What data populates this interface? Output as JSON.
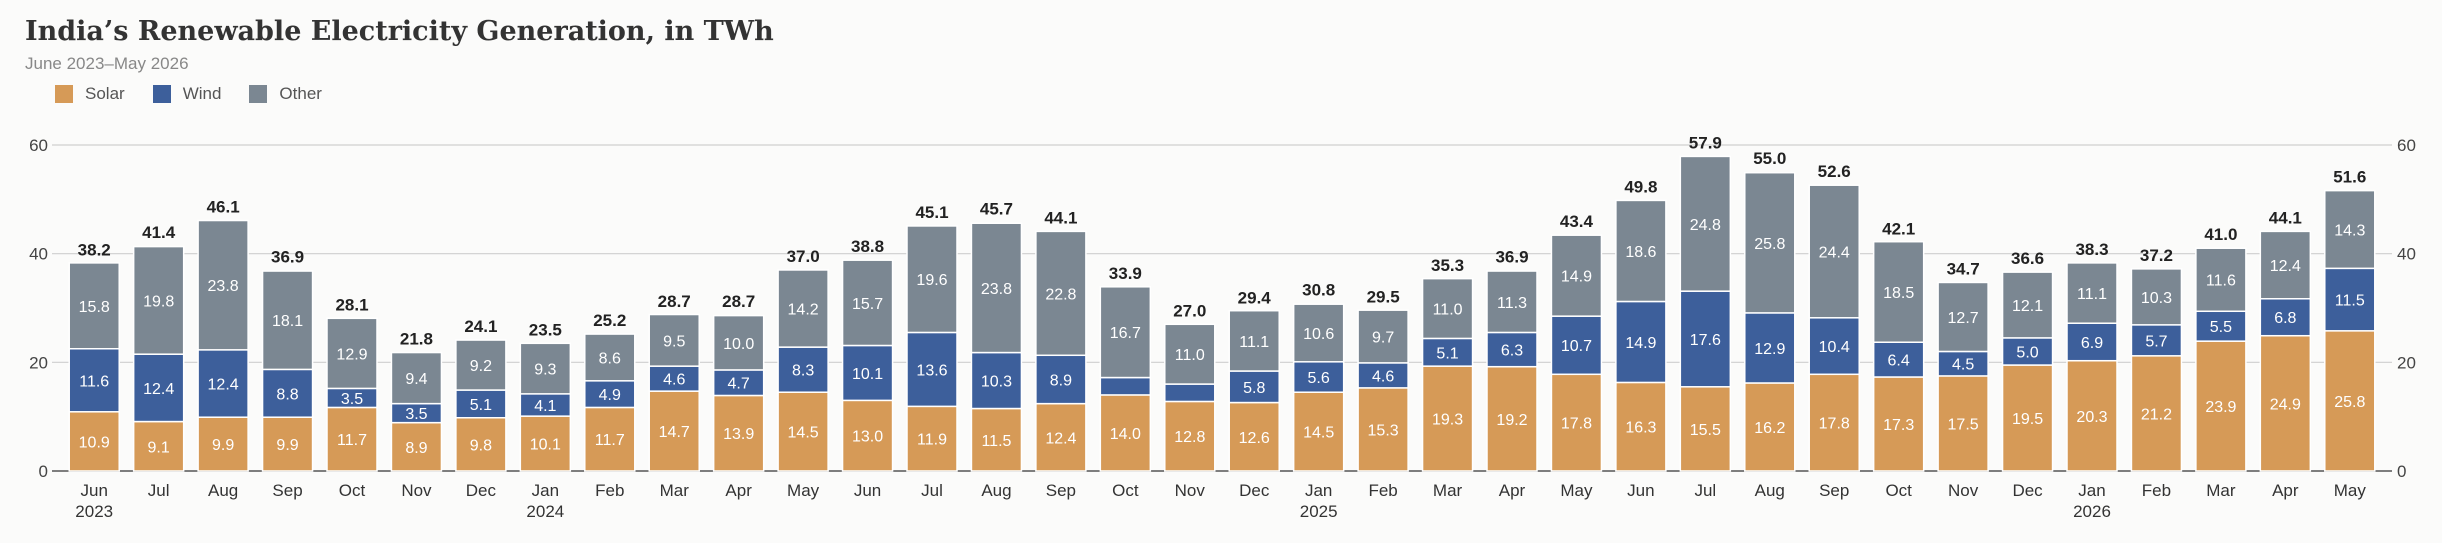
{
  "chart_data": {
    "type": "bar",
    "stacked": true,
    "title": "India’s Renewable Electricity Generation, in TWh",
    "subtitle": "June 2023–May 2026",
    "ylim": [
      0,
      60
    ],
    "yticks": [
      0,
      20,
      40,
      60
    ],
    "grid": true,
    "legend_position": "top-left",
    "categories": [
      "Jun",
      "Jul",
      "Aug",
      "Sep",
      "Oct",
      "Nov",
      "Dec",
      "Jan",
      "Feb",
      "Mar",
      "Apr",
      "May",
      "Jun",
      "Jul",
      "Aug",
      "Sep",
      "Oct",
      "Nov",
      "Dec",
      "Jan",
      "Feb",
      "Mar",
      "Apr",
      "May",
      "Jun",
      "Jul",
      "Aug",
      "Sep",
      "Oct",
      "Nov",
      "Dec",
      "Jan",
      "Feb",
      "Mar",
      "Apr",
      "May"
    ],
    "year_labels": [
      "2023",
      "",
      "",
      "",
      "",
      "",
      "",
      "2024",
      "",
      "",
      "",
      "",
      "",
      "",
      "",
      "",
      "",
      "",
      "",
      "2025",
      "",
      "",
      "",
      "",
      "",
      "",
      "",
      "",
      "",
      "",
      "",
      "2026",
      "",
      "",
      "",
      ""
    ],
    "series": [
      {
        "name": "Solar",
        "color": "#d69a57",
        "values": [
          10.9,
          9.1,
          9.9,
          9.9,
          11.7,
          8.9,
          9.8,
          10.1,
          11.7,
          14.7,
          13.9,
          14.5,
          13.0,
          11.9,
          11.5,
          12.4,
          14.0,
          12.8,
          12.6,
          14.5,
          15.3,
          19.3,
          19.2,
          17.8,
          16.3,
          15.5,
          16.2,
          17.8,
          17.3,
          17.5,
          19.5,
          20.3,
          21.2,
          23.9,
          24.9,
          25.8
        ],
        "labels": [
          "10.9",
          "9.1",
          "9.9",
          "9.9",
          "11.7",
          "8.9",
          "9.8",
          "10.1",
          "11.7",
          "14.7",
          "13.9",
          "14.5",
          "13.0",
          "11.9",
          "11.5",
          "12.4",
          "14.0",
          "12.8",
          "12.6",
          "14.5",
          "15.3",
          "19.3",
          "19.2",
          "17.8",
          "16.3",
          "15.5",
          "16.2",
          "17.8",
          "17.3",
          "17.5",
          "19.5",
          "20.3",
          "21.2",
          "23.9",
          "24.9",
          "25.8"
        ]
      },
      {
        "name": "Wind",
        "color": "#3d5f9b",
        "values": [
          11.6,
          12.4,
          12.4,
          8.8,
          3.5,
          3.5,
          5.1,
          4.1,
          4.9,
          4.6,
          4.7,
          8.3,
          10.1,
          13.6,
          10.3,
          8.9,
          3.2,
          3.2,
          5.8,
          5.6,
          4.6,
          5.1,
          6.3,
          10.7,
          14.9,
          17.6,
          12.9,
          10.4,
          6.4,
          4.5,
          5.0,
          6.9,
          5.7,
          5.5,
          6.8,
          11.5
        ],
        "labels": [
          "11.6",
          "12.4",
          "12.4",
          "8.8",
          "3.5",
          "3.5",
          "5.1",
          "4.1",
          "4.9",
          "4.6",
          "4.7",
          "8.3",
          "10.1",
          "13.6",
          "10.3",
          "8.9",
          "",
          "",
          "5.8",
          "5.6",
          "4.6",
          "5.1",
          "6.3",
          "10.7",
          "14.9",
          "17.6",
          "12.9",
          "10.4",
          "6.4",
          "4.5",
          "5.0",
          "6.9",
          "5.7",
          "5.5",
          "6.8",
          "11.5"
        ]
      },
      {
        "name": "Other",
        "color": "#7b8792",
        "values": [
          15.8,
          19.8,
          23.8,
          18.1,
          12.9,
          9.4,
          9.2,
          9.3,
          8.6,
          9.5,
          10.0,
          14.2,
          15.7,
          19.6,
          23.8,
          22.8,
          16.7,
          11.0,
          11.1,
          10.6,
          9.7,
          11.0,
          11.3,
          14.9,
          18.6,
          24.8,
          25.8,
          24.4,
          18.5,
          12.7,
          12.1,
          11.1,
          10.3,
          11.6,
          12.4,
          14.3
        ],
        "labels": [
          "15.8",
          "19.8",
          "23.8",
          "18.1",
          "12.9",
          "9.4",
          "9.2",
          "9.3",
          "8.6",
          "9.5",
          "10.0",
          "14.2",
          "15.7",
          "19.6",
          "23.8",
          "22.8",
          "16.7",
          "11.0",
          "11.1",
          "10.6",
          "9.7",
          "11.0",
          "11.3",
          "14.9",
          "18.6",
          "24.8",
          "25.8",
          "24.4",
          "18.5",
          "12.7",
          "12.1",
          "11.1",
          "10.3",
          "11.6",
          "12.4",
          "14.3"
        ]
      }
    ],
    "totals": [
      38.2,
      41.4,
      46.1,
      36.9,
      28.1,
      21.8,
      24.1,
      23.5,
      25.2,
      28.7,
      28.7,
      37.0,
      38.8,
      45.1,
      45.7,
      44.1,
      33.9,
      27.0,
      29.4,
      30.8,
      29.5,
      35.3,
      36.9,
      43.4,
      49.8,
      57.9,
      55.0,
      52.6,
      42.1,
      34.7,
      36.6,
      38.3,
      37.2,
      41.0,
      44.1,
      51.6
    ],
    "total_labels": [
      "38.2",
      "41.4",
      "46.1",
      "36.9",
      "28.1",
      "21.8",
      "24.1",
      "23.5",
      "25.2",
      "28.7",
      "28.7",
      "37.0",
      "38.8",
      "45.1",
      "45.7",
      "44.1",
      "33.9",
      "27.0",
      "29.4",
      "30.8",
      "29.5",
      "35.3",
      "36.9",
      "43.4",
      "49.8",
      "57.9",
      "55.0",
      "52.6",
      "42.1",
      "34.7",
      "36.6",
      "38.3",
      "37.2",
      "41.0",
      "44.1",
      "51.6"
    ]
  }
}
